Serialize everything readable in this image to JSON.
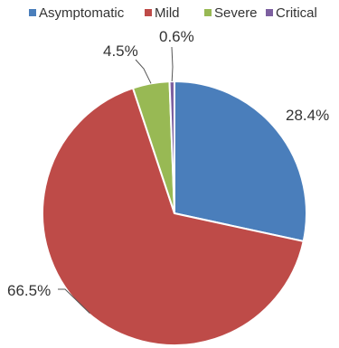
{
  "chart_data": {
    "type": "pie",
    "title": "",
    "legend_position": "top",
    "series": [
      {
        "categories": [
          "Asymptomatic",
          "Mild",
          "Severe",
          "Critical"
        ],
        "values": [
          28.4,
          66.5,
          4.5,
          0.6
        ],
        "labels": [
          "28.4%",
          "66.5%",
          "4.5%",
          "0.6%"
        ],
        "colors": [
          "#4a7ebb",
          "#be4b48",
          "#98b954",
          "#7d60a0"
        ]
      }
    ]
  }
}
